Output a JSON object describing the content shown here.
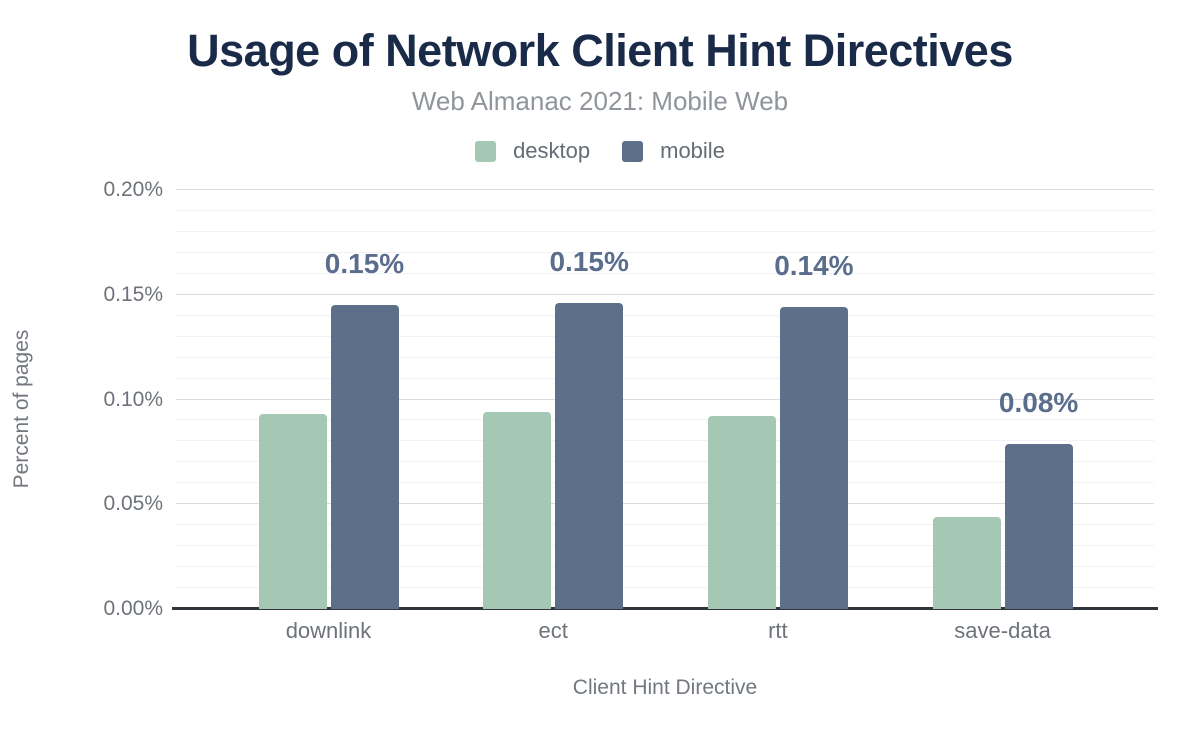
{
  "header": {
    "title": "Usage of Network Client Hint Directives",
    "subtitle": "Web Almanac 2021: Mobile Web"
  },
  "legend": [
    {
      "label": "desktop",
      "color": "#a5c8b4"
    },
    {
      "label": "mobile",
      "color": "#5e7089"
    }
  ],
  "axes": {
    "y_title": "Percent of pages",
    "x_title": "Client Hint Directive",
    "y_ticks": [
      "0.20%",
      "0.15%",
      "0.10%",
      "0.05%",
      "0.00%"
    ],
    "x_ticks": [
      "downlink",
      "ect",
      "rtt",
      "save-data"
    ]
  },
  "chart_data": {
    "type": "bar",
    "title": "Usage of Network Client Hint Directives",
    "subtitle": "Web Almanac 2021: Mobile Web",
    "categories": [
      "downlink",
      "ect",
      "rtt",
      "save-data"
    ],
    "series": [
      {
        "name": "desktop",
        "color": "#a5c8b4",
        "values": [
          0.093,
          0.094,
          0.092,
          0.044
        ]
      },
      {
        "name": "mobile",
        "color": "#5e7089",
        "values": [
          0.145,
          0.146,
          0.144,
          0.079
        ],
        "labels": [
          "0.15%",
          "0.15%",
          "0.14%",
          "0.08%"
        ]
      }
    ],
    "xlabel": "Client Hint Directive",
    "ylabel": "Percent of pages",
    "ylim": [
      0,
      0.2
    ],
    "y_tick_step": 0.05,
    "y_minor_step": 0.01,
    "unit": "%",
    "grid": true,
    "legend_position": "top",
    "value_labels_on": "mobile"
  },
  "colors": {
    "title": "#1a2b49",
    "subtitle": "#8f959b",
    "axis_text": "#6e737a",
    "data_label": "#5b6d8d",
    "grid_major": "#dadce0",
    "grid_minor": "#f1f2f4",
    "axis_line": "#30353b"
  }
}
